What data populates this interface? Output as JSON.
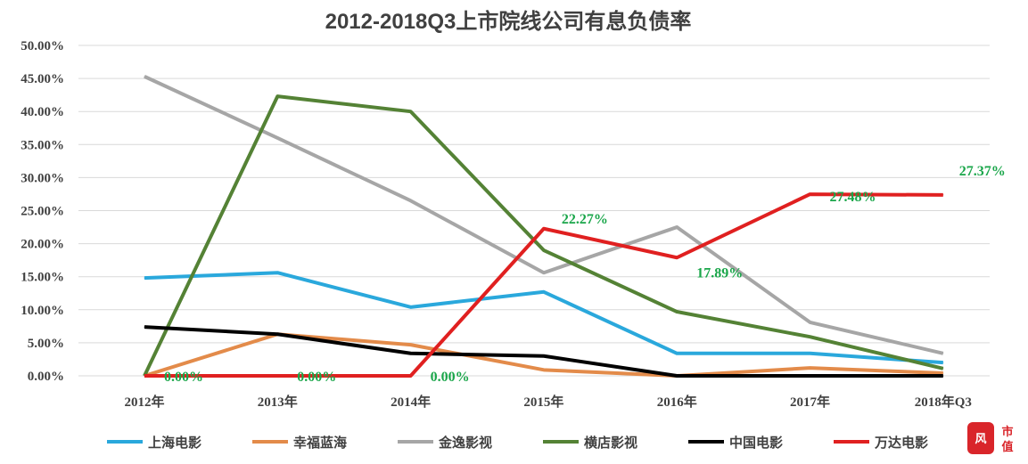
{
  "chart_data": {
    "type": "line",
    "title": "2012-2018Q3上市院线公司有息负债率",
    "categories": [
      "2012年",
      "2013年",
      "2014年",
      "2015年",
      "2016年",
      "2017年",
      "2018年Q3"
    ],
    "ylim": [
      0,
      50
    ],
    "yticks": [
      "0.00%",
      "5.00%",
      "10.00%",
      "15.00%",
      "20.00%",
      "25.00%",
      "30.00%",
      "35.00%",
      "40.00%",
      "45.00%",
      "50.00%"
    ],
    "grid": true,
    "legend": "bottom",
    "series": [
      {
        "name": "上海电影",
        "color": "#2aa8dc",
        "values": [
          14.8,
          15.6,
          10.4,
          12.7,
          3.4,
          3.4,
          2.0
        ]
      },
      {
        "name": "幸福蓝海",
        "color": "#e38b4a",
        "values": [
          0,
          6.3,
          4.7,
          0.9,
          0,
          1.2,
          0.4
        ]
      },
      {
        "name": "金逸影视",
        "color": "#a6a6a6",
        "values": [
          45.3,
          36.0,
          26.5,
          15.6,
          22.5,
          8.1,
          3.4
        ]
      },
      {
        "name": "横店影视",
        "color": "#548235",
        "values": [
          0,
          42.3,
          40.0,
          19.0,
          9.7,
          5.9,
          1.1
        ]
      },
      {
        "name": "中国电影",
        "color": "#000000",
        "values": [
          7.4,
          6.3,
          3.4,
          3.0,
          0,
          0,
          0
        ]
      },
      {
        "name": "万达电影",
        "color": "#e02020",
        "values": [
          0,
          0,
          0,
          22.27,
          17.89,
          27.48,
          27.37
        ]
      }
    ],
    "data_labels": [
      {
        "series": "万达电影",
        "index": 0,
        "text": "0.00%"
      },
      {
        "series": "万达电影",
        "index": 1,
        "text": "0.00%"
      },
      {
        "series": "万达电影",
        "index": 2,
        "text": "0.00%"
      },
      {
        "series": "万达电影",
        "index": 3,
        "text": "22.27%"
      },
      {
        "series": "万达电影",
        "index": 4,
        "text": "17.89%"
      },
      {
        "series": "万达电影",
        "index": 5,
        "text": "27.48%"
      },
      {
        "series": "万达电影",
        "index": 6,
        "text": "27.37%"
      }
    ]
  },
  "logo": {
    "text": "市值",
    "color": "#d9252a"
  }
}
